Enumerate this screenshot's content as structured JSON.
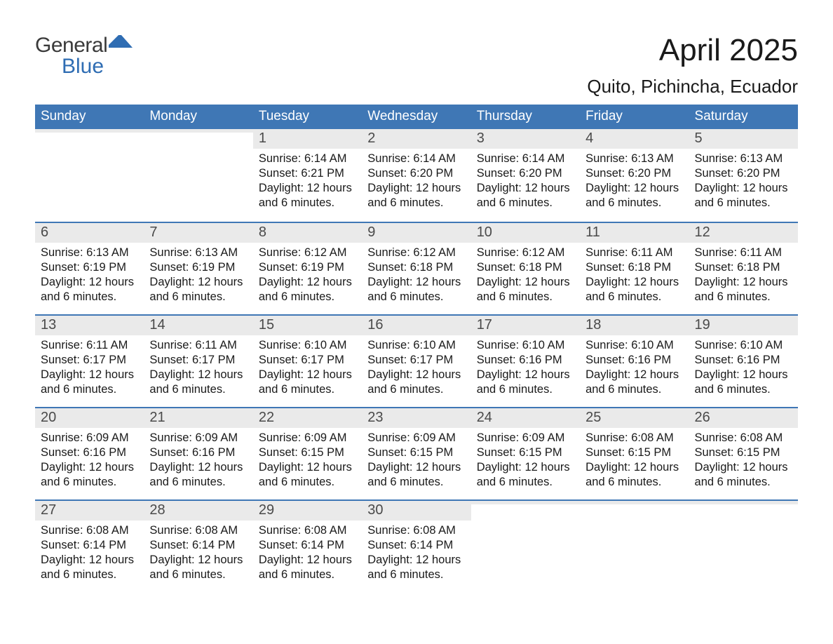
{
  "brand": {
    "word1": "General",
    "word2": "Blue",
    "color_general": "#3a3a3a",
    "color_blue": "#2f6db3",
    "flag_color": "#2f6db3"
  },
  "header": {
    "month_title": "April 2025",
    "location": "Quito, Pichincha, Ecuador"
  },
  "colors": {
    "header_row_bg": "#3f77b5",
    "header_row_text": "#ffffff",
    "week_divider": "#3f77b5",
    "daynum_band_bg": "#eaeaea",
    "daynum_text": "#4a4a4a",
    "body_text": "#1a1a1a",
    "page_bg": "#ffffff"
  },
  "labels": {
    "sunrise_prefix": "Sunrise: ",
    "sunset_prefix": "Sunset: ",
    "daylight_prefix": "Daylight: "
  },
  "days_of_week": [
    "Sunday",
    "Monday",
    "Tuesday",
    "Wednesday",
    "Thursday",
    "Friday",
    "Saturday"
  ],
  "weeks": [
    [
      {
        "blank": true
      },
      {
        "blank": true
      },
      {
        "n": "1",
        "sunrise": "6:14 AM",
        "sunset": "6:21 PM",
        "daylight": "12 hours and 6 minutes."
      },
      {
        "n": "2",
        "sunrise": "6:14 AM",
        "sunset": "6:20 PM",
        "daylight": "12 hours and 6 minutes."
      },
      {
        "n": "3",
        "sunrise": "6:14 AM",
        "sunset": "6:20 PM",
        "daylight": "12 hours and 6 minutes."
      },
      {
        "n": "4",
        "sunrise": "6:13 AM",
        "sunset": "6:20 PM",
        "daylight": "12 hours and 6 minutes."
      },
      {
        "n": "5",
        "sunrise": "6:13 AM",
        "sunset": "6:20 PM",
        "daylight": "12 hours and 6 minutes."
      }
    ],
    [
      {
        "n": "6",
        "sunrise": "6:13 AM",
        "sunset": "6:19 PM",
        "daylight": "12 hours and 6 minutes."
      },
      {
        "n": "7",
        "sunrise": "6:13 AM",
        "sunset": "6:19 PM",
        "daylight": "12 hours and 6 minutes."
      },
      {
        "n": "8",
        "sunrise": "6:12 AM",
        "sunset": "6:19 PM",
        "daylight": "12 hours and 6 minutes."
      },
      {
        "n": "9",
        "sunrise": "6:12 AM",
        "sunset": "6:18 PM",
        "daylight": "12 hours and 6 minutes."
      },
      {
        "n": "10",
        "sunrise": "6:12 AM",
        "sunset": "6:18 PM",
        "daylight": "12 hours and 6 minutes."
      },
      {
        "n": "11",
        "sunrise": "6:11 AM",
        "sunset": "6:18 PM",
        "daylight": "12 hours and 6 minutes."
      },
      {
        "n": "12",
        "sunrise": "6:11 AM",
        "sunset": "6:18 PM",
        "daylight": "12 hours and 6 minutes."
      }
    ],
    [
      {
        "n": "13",
        "sunrise": "6:11 AM",
        "sunset": "6:17 PM",
        "daylight": "12 hours and 6 minutes."
      },
      {
        "n": "14",
        "sunrise": "6:11 AM",
        "sunset": "6:17 PM",
        "daylight": "12 hours and 6 minutes."
      },
      {
        "n": "15",
        "sunrise": "6:10 AM",
        "sunset": "6:17 PM",
        "daylight": "12 hours and 6 minutes."
      },
      {
        "n": "16",
        "sunrise": "6:10 AM",
        "sunset": "6:17 PM",
        "daylight": "12 hours and 6 minutes."
      },
      {
        "n": "17",
        "sunrise": "6:10 AM",
        "sunset": "6:16 PM",
        "daylight": "12 hours and 6 minutes."
      },
      {
        "n": "18",
        "sunrise": "6:10 AM",
        "sunset": "6:16 PM",
        "daylight": "12 hours and 6 minutes."
      },
      {
        "n": "19",
        "sunrise": "6:10 AM",
        "sunset": "6:16 PM",
        "daylight": "12 hours and 6 minutes."
      }
    ],
    [
      {
        "n": "20",
        "sunrise": "6:09 AM",
        "sunset": "6:16 PM",
        "daylight": "12 hours and 6 minutes."
      },
      {
        "n": "21",
        "sunrise": "6:09 AM",
        "sunset": "6:16 PM",
        "daylight": "12 hours and 6 minutes."
      },
      {
        "n": "22",
        "sunrise": "6:09 AM",
        "sunset": "6:15 PM",
        "daylight": "12 hours and 6 minutes."
      },
      {
        "n": "23",
        "sunrise": "6:09 AM",
        "sunset": "6:15 PM",
        "daylight": "12 hours and 6 minutes."
      },
      {
        "n": "24",
        "sunrise": "6:09 AM",
        "sunset": "6:15 PM",
        "daylight": "12 hours and 6 minutes."
      },
      {
        "n": "25",
        "sunrise": "6:08 AM",
        "sunset": "6:15 PM",
        "daylight": "12 hours and 6 minutes."
      },
      {
        "n": "26",
        "sunrise": "6:08 AM",
        "sunset": "6:15 PM",
        "daylight": "12 hours and 6 minutes."
      }
    ],
    [
      {
        "n": "27",
        "sunrise": "6:08 AM",
        "sunset": "6:14 PM",
        "daylight": "12 hours and 6 minutes."
      },
      {
        "n": "28",
        "sunrise": "6:08 AM",
        "sunset": "6:14 PM",
        "daylight": "12 hours and 6 minutes."
      },
      {
        "n": "29",
        "sunrise": "6:08 AM",
        "sunset": "6:14 PM",
        "daylight": "12 hours and 6 minutes."
      },
      {
        "n": "30",
        "sunrise": "6:08 AM",
        "sunset": "6:14 PM",
        "daylight": "12 hours and 6 minutes."
      },
      {
        "blank": true
      },
      {
        "blank": true
      },
      {
        "blank": true
      }
    ]
  ]
}
